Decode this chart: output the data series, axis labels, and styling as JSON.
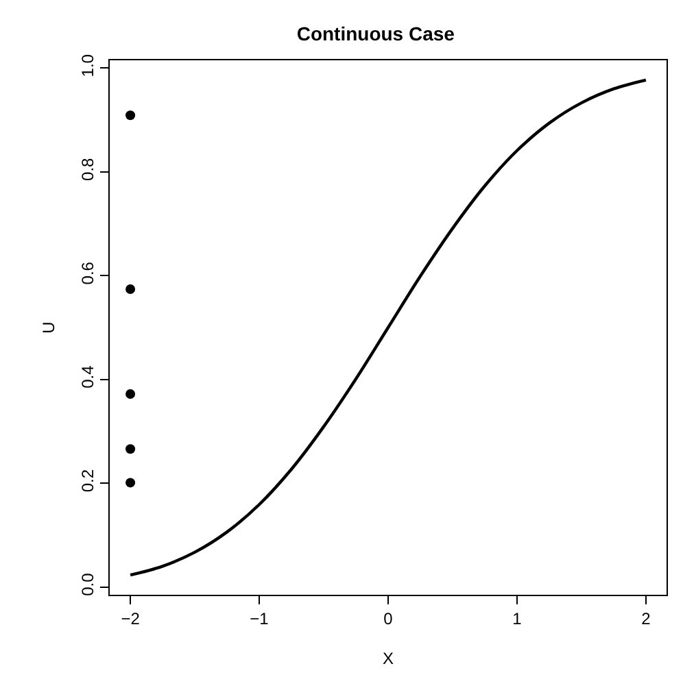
{
  "chart_data": {
    "type": "line",
    "title": "Continuous Case",
    "xlabel": "X",
    "ylabel": "U",
    "xlim": [
      -2.16,
      2.16
    ],
    "xticks": [
      {
        "value": -2,
        "label": "−2"
      },
      {
        "value": -1,
        "label": "−1"
      },
      0,
      1,
      2
    ],
    "ylim": [
      -0.015,
      1.015
    ],
    "yticks": [
      {
        "value": 0,
        "label": "0.0"
      },
      0.2,
      0.4,
      0.6,
      0.8,
      {
        "value": 1,
        "label": "1.0"
      }
    ],
    "grid": false,
    "series": [
      {
        "color": "#000000",
        "marker": "none",
        "line_style": "solid",
        "x": [
          -2,
          -1.75,
          -1.5,
          -1.25,
          -1,
          -0.75,
          -0.5,
          -0.25,
          0,
          0.25,
          0.5,
          0.75,
          1,
          1.25,
          1.5,
          1.75,
          2
        ],
        "values": [
          0.023,
          0.04,
          0.067,
          0.106,
          0.159,
          0.227,
          0.309,
          0.401,
          0.5,
          0.599,
          0.691,
          0.773,
          0.841,
          0.894,
          0.933,
          0.96,
          0.977
        ]
      },
      {
        "type": "scatter",
        "color": "#000000",
        "marker": "circle",
        "x": [
          -2,
          -2,
          -2,
          -2,
          -2
        ],
        "values": [
          0.909,
          0.574,
          0.372,
          0.266,
          0.201
        ]
      }
    ]
  }
}
